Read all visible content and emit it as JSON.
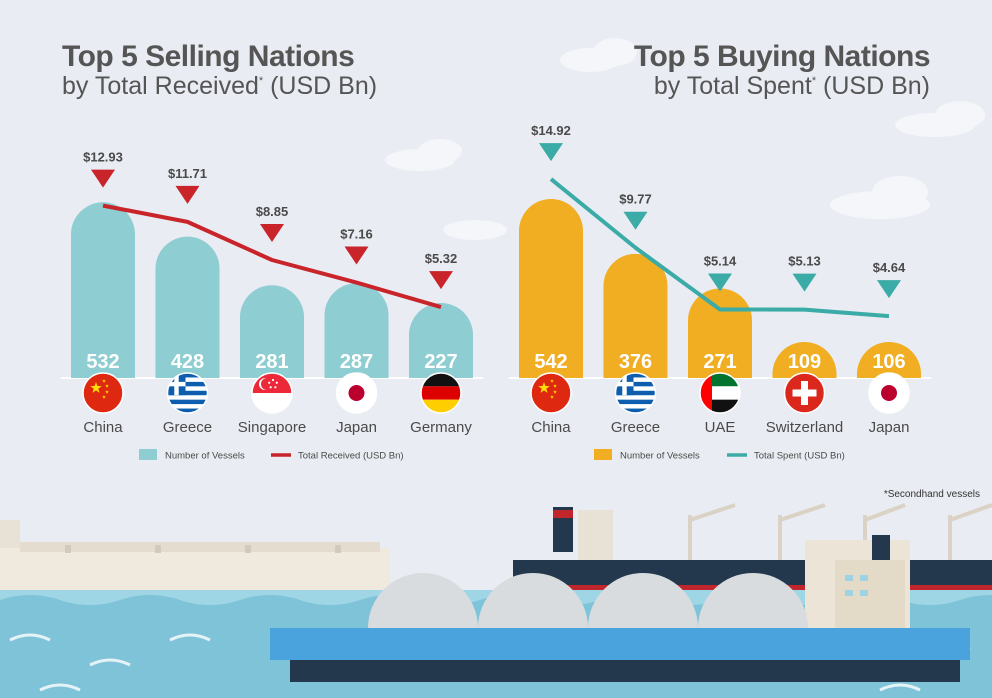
{
  "footnote": "*Secondhand vessels",
  "colors": {
    "sell_bar": "#8ecdd1",
    "sell_line": "#c8242a",
    "buy_bar": "#f1ae22",
    "buy_line": "#3aaba6",
    "text": "#4a4a4a",
    "white": "#ffffff"
  },
  "chart_data": [
    {
      "type": "bar",
      "title": "Top 5 Selling Nations",
      "subtitle_prefix": "by Total Received",
      "subtitle_mark": "*",
      "subtitle_suffix": " (USD Bn)",
      "categories": [
        "China",
        "Greece",
        "Singapore",
        "Japan",
        "Germany"
      ],
      "series": [
        {
          "name": "Number of Vessels",
          "kind": "bar",
          "values": [
            532,
            428,
            281,
            287,
            227
          ]
        },
        {
          "name": "Total Received (USD Bn)",
          "kind": "line",
          "values": [
            12.93,
            11.71,
            8.85,
            7.16,
            5.32
          ],
          "labels": [
            "$12.93",
            "$11.71",
            "$8.85",
            "$7.16",
            "$5.32"
          ]
        }
      ],
      "legend": [
        "Number of Vessels",
        "Total Received (USD Bn)"
      ],
      "flags": [
        "china-flag",
        "greece-flag",
        "singapore-flag",
        "japan-flag",
        "germany-flag"
      ]
    },
    {
      "type": "bar",
      "title": "Top 5 Buying Nations",
      "subtitle_prefix": "by Total Spent",
      "subtitle_mark": "*",
      "subtitle_suffix": " (USD Bn)",
      "categories": [
        "China",
        "Greece",
        "UAE",
        "Switzerland",
        "Japan"
      ],
      "series": [
        {
          "name": "Number of Vessels",
          "kind": "bar",
          "values": [
            542,
            376,
            271,
            109,
            106
          ]
        },
        {
          "name": "Total Spent (USD Bn)",
          "kind": "line",
          "values": [
            14.92,
            9.77,
            5.14,
            5.13,
            4.64
          ],
          "labels": [
            "$14.92",
            "$9.77",
            "$5.14",
            "$5.13",
            "$4.64"
          ]
        }
      ],
      "legend": [
        "Number of Vessels",
        "Total Spent (USD Bn)"
      ],
      "flags": [
        "china-flag",
        "greece-flag",
        "uae-flag",
        "switzerland-flag",
        "japan-flag"
      ]
    }
  ]
}
